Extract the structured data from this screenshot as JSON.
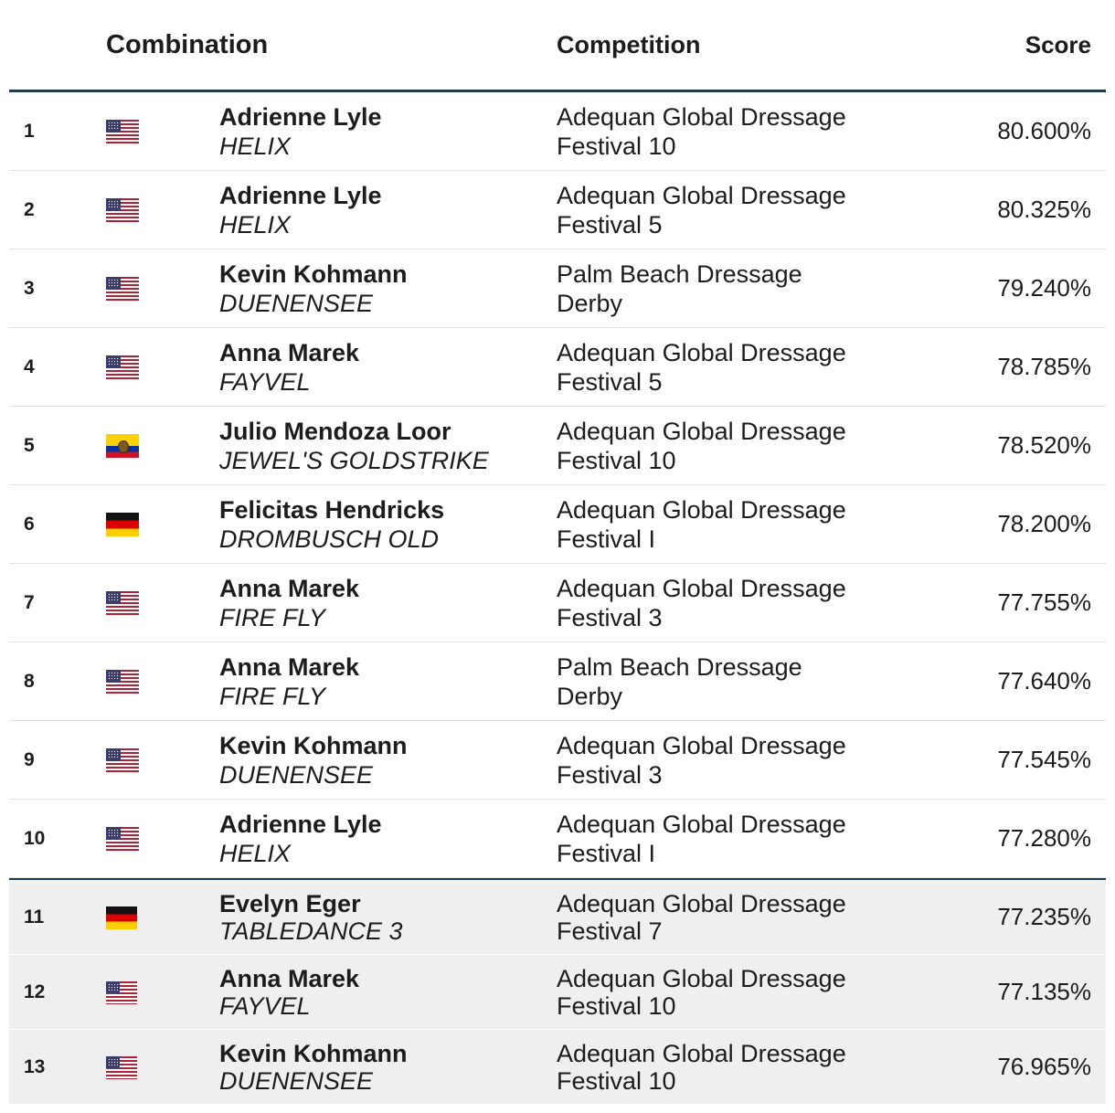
{
  "header": {
    "combination": "Combination",
    "competition": "Competition",
    "score": "Score"
  },
  "rows": [
    {
      "rank": "1",
      "flag": "us-flag-icon",
      "rider": "Adrienne Lyle",
      "horse": "HELIX",
      "competition": "Adequan Global Dressage Festival 10",
      "score": "80.600%"
    },
    {
      "rank": "2",
      "flag": "us-flag-icon",
      "rider": "Adrienne Lyle",
      "horse": "HELIX",
      "competition": "Adequan Global Dressage Festival 5",
      "score": "80.325%"
    },
    {
      "rank": "3",
      "flag": "us-flag-icon",
      "rider": "Kevin Kohmann",
      "horse": "DUENENSEE",
      "competition": "Palm Beach Dressage Derby",
      "score": "79.240%"
    },
    {
      "rank": "4",
      "flag": "us-flag-icon",
      "rider": "Anna Marek",
      "horse": "FAYVEL",
      "competition": "Adequan Global Dressage Festival 5",
      "score": "78.785%"
    },
    {
      "rank": "5",
      "flag": "ec-flag-icon",
      "rider": "Julio Mendoza Loor",
      "horse": "JEWEL'S GOLDSTRIKE",
      "competition": "Adequan Global Dressage Festival 10",
      "score": "78.520%"
    },
    {
      "rank": "6",
      "flag": "de-flag-icon",
      "rider": "Felicitas Hendricks",
      "horse": "DROMBUSCH OLD",
      "competition": "Adequan Global Dressage Festival I",
      "score": "78.200%"
    },
    {
      "rank": "7",
      "flag": "us-flag-icon",
      "rider": "Anna Marek",
      "horse": "FIRE FLY",
      "competition": "Adequan Global Dressage Festival 3",
      "score": "77.755%"
    },
    {
      "rank": "8",
      "flag": "us-flag-icon",
      "rider": "Anna Marek",
      "horse": "FIRE FLY",
      "competition": "Palm Beach Dressage Derby",
      "score": "77.640%"
    },
    {
      "rank": "9",
      "flag": "us-flag-icon",
      "rider": "Kevin Kohmann",
      "horse": "DUENENSEE",
      "competition": "Adequan Global Dressage Festival 3",
      "score": "77.545%"
    },
    {
      "rank": "10",
      "flag": "us-flag-icon",
      "rider": "Adrienne Lyle",
      "horse": "HELIX",
      "competition": "Adequan Global Dressage Festival I",
      "score": "77.280%"
    },
    {
      "rank": "11",
      "flag": "de-flag-icon",
      "rider": "Evelyn Eger",
      "horse": "TABLEDANCE 3",
      "competition": "Adequan Global Dressage Festival 7",
      "score": "77.235%"
    },
    {
      "rank": "12",
      "flag": "us-flag-icon",
      "rider": "Anna Marek",
      "horse": "FAYVEL",
      "competition": "Adequan Global Dressage Festival 10",
      "score": "77.135%"
    },
    {
      "rank": "13",
      "flag": "us-flag-icon",
      "rider": "Kevin Kohmann",
      "horse": "DUENENSEE",
      "competition": "Adequan Global Dressage Festival 10",
      "score": "76.965%"
    }
  ],
  "colors": {
    "header_rule": "#1f3a4d",
    "grey_row_bg": "#efefef"
  }
}
